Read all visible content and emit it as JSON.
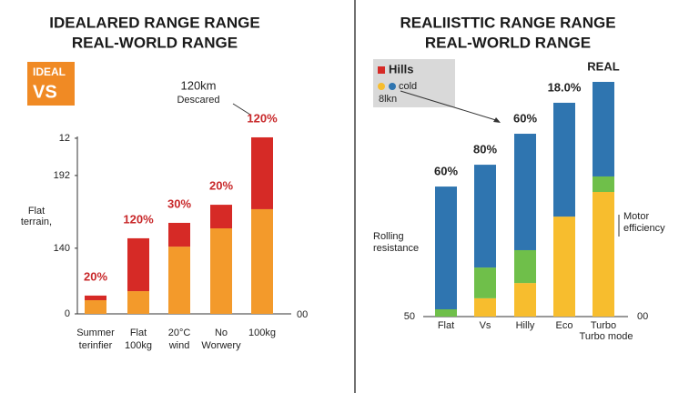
{
  "chart_data": [
    {
      "type": "bar",
      "stacked": true,
      "title": "IDEALARED RANGE RANGE",
      "subtitle": "REAL-WORLD RANGE",
      "badge": [
        "IDEAL",
        "VS"
      ],
      "callout": [
        "120km",
        "Descared"
      ],
      "axis_note": [
        "Flat",
        "terrain,"
      ],
      "right_note": "00",
      "categories": [
        [
          "Summer",
          "terinfier"
        ],
        [
          "Flat",
          "100kg"
        ],
        [
          "20°C",
          "wind"
        ],
        [
          "No",
          "Worwery"
        ],
        [
          "100kg"
        ]
      ],
      "series": [
        {
          "color": "#f39a2b",
          "values": [
            7.7,
            12.8,
            37.9,
            48.2,
            59
          ]
        },
        {
          "color": "#d62a26",
          "values": [
            2.6,
            29.8,
            13.4,
            13.3,
            40.5
          ]
        }
      ],
      "bar_labels": [
        "20%",
        "120%",
        "30%",
        "20%",
        "120%"
      ],
      "ylim": [
        0,
        100
      ],
      "yticks": [
        0,
        {
          "value": 37,
          "label": "140"
        },
        {
          "value": 78,
          "label": "192"
        },
        {
          "value": 99,
          "label": "12"
        }
      ]
    },
    {
      "type": "bar",
      "stacked": true,
      "title": "REALIISTTIC RANGE RANGE",
      "subtitle": "REAL-WORLD RANGE",
      "legend": [
        "Hills",
        "cold",
        "8lkn"
      ],
      "left_note": [
        "Rolling",
        "resistance"
      ],
      "right_note": [
        "Motor",
        "efficiency"
      ],
      "extra_label": "Turbo mode",
      "corner_note": "00",
      "categories": [
        "Flat",
        "Vs",
        "Hilly",
        "Eco",
        "Turbo"
      ],
      "series": [
        {
          "color": "#f7bd2e",
          "values": [
            0,
            7.8,
            14.3,
            42.6,
            53.1
          ]
        },
        {
          "color": "#6fbf4a",
          "values": [
            3.1,
            13.1,
            14,
            0,
            6.6
          ]
        },
        {
          "color": "#2f75b0",
          "values": [
            52.3,
            43.8,
            49.6,
            48.5,
            40.3
          ]
        }
      ],
      "bar_labels": [
        "60%",
        "80%",
        "60%",
        "18.0%",
        "REAL"
      ],
      "ylim": [
        0,
        100
      ],
      "yticks": [
        {
          "value": 0,
          "label": "50"
        }
      ]
    }
  ]
}
